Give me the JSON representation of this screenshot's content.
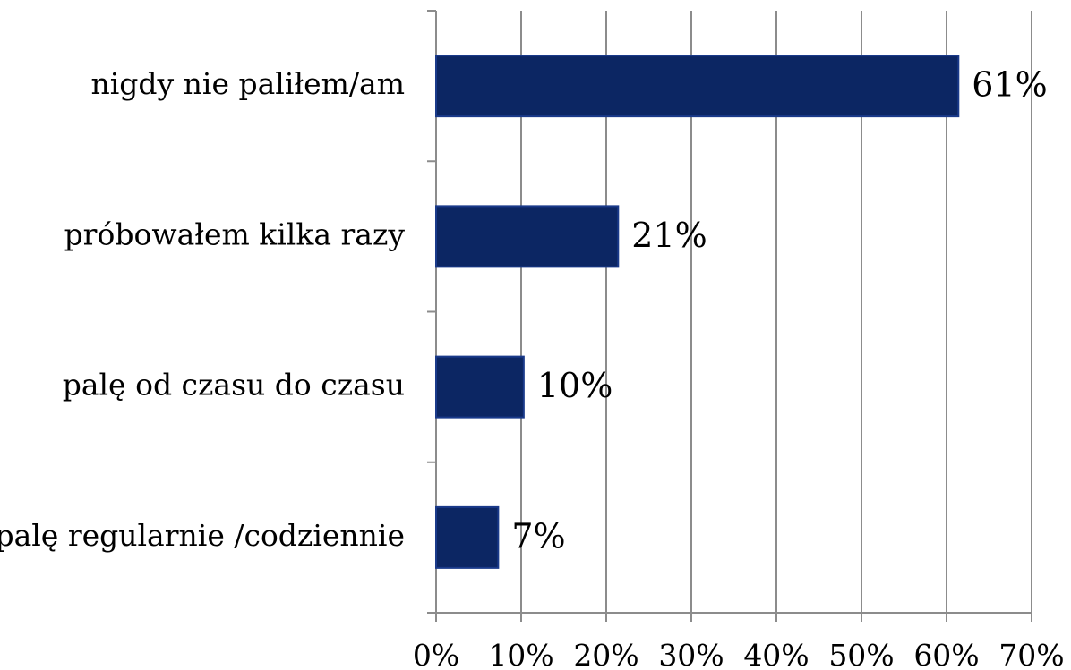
{
  "chart_data": {
    "type": "bar",
    "orientation": "horizontal",
    "categories": [
      "nigdy nie paliłem/am",
      "próbowałem kilka razy",
      "palę od czasu do czasu",
      "palę regularnie /codziennie"
    ],
    "values": [
      61.4,
      21.4,
      10.3,
      7.3
    ],
    "value_labels": [
      "61%",
      "21%",
      "10%",
      "7%"
    ],
    "color": "#0c2663",
    "xlim": [
      0,
      70
    ],
    "xticks": [
      {
        "value": 0,
        "label": "0%"
      },
      {
        "value": 10,
        "label": "10%"
      },
      {
        "value": 20,
        "label": "20%"
      },
      {
        "value": 30,
        "label": "30%"
      },
      {
        "value": 40,
        "label": "40%"
      },
      {
        "value": 50,
        "label": "50%"
      },
      {
        "value": 60,
        "label": "60%"
      },
      {
        "value": 70,
        "label": "70%"
      }
    ],
    "grid": true
  }
}
